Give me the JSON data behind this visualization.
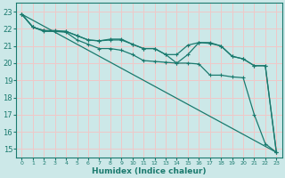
{
  "title": "",
  "xlabel": "Humidex (Indice chaleur)",
  "ylabel": "",
  "bg_color": "#cce8e8",
  "grid_color": "#f0c8c8",
  "line_color": "#1a7a6e",
  "xlim": [
    -0.5,
    23.5
  ],
  "ylim": [
    14.5,
    23.5
  ],
  "xticks": [
    0,
    1,
    2,
    3,
    4,
    5,
    6,
    7,
    8,
    9,
    10,
    11,
    12,
    13,
    14,
    15,
    16,
    17,
    18,
    19,
    20,
    21,
    22,
    23
  ],
  "yticks": [
    15,
    16,
    17,
    18,
    19,
    20,
    21,
    22,
    23
  ],
  "series_plain": [
    [
      0,
      22.85
    ],
    [
      23,
      14.8
    ]
  ],
  "series_with_markers": [
    [
      [
        0,
        1,
        2,
        3,
        4,
        5,
        6,
        7,
        8,
        9,
        10,
        11,
        12,
        13,
        14,
        15,
        16,
        17,
        18,
        19,
        20,
        21,
        22,
        23
      ],
      [
        22.85,
        22.1,
        21.9,
        21.85,
        21.85,
        21.6,
        21.35,
        21.3,
        21.35,
        21.35,
        21.1,
        20.85,
        20.85,
        20.5,
        20.5,
        21.05,
        21.2,
        21.2,
        21.0,
        20.4,
        20.25,
        19.85,
        19.85,
        14.8
      ]
    ],
    [
      [
        0,
        1,
        2,
        3,
        4,
        5,
        6,
        7,
        8,
        9,
        10,
        11,
        12,
        13,
        14,
        15,
        16,
        17,
        18,
        19,
        20,
        21,
        22,
        23
      ],
      [
        22.85,
        22.1,
        21.9,
        21.9,
        21.85,
        21.6,
        21.35,
        21.3,
        21.4,
        21.4,
        21.1,
        20.85,
        20.85,
        20.5,
        20.0,
        20.5,
        21.2,
        21.15,
        21.0,
        20.4,
        20.25,
        19.85,
        19.85,
        14.8
      ]
    ],
    [
      [
        0,
        1,
        2,
        3,
        4,
        5,
        6,
        7,
        8,
        9,
        10,
        11,
        12,
        13,
        14,
        15,
        16,
        17,
        18,
        19,
        20,
        21,
        22,
        23
      ],
      [
        22.85,
        22.1,
        21.85,
        21.85,
        21.8,
        21.35,
        21.1,
        20.85,
        20.85,
        20.75,
        20.5,
        20.15,
        20.1,
        20.05,
        20.0,
        20.0,
        19.95,
        19.3,
        19.3,
        19.2,
        19.15,
        17.0,
        15.3,
        14.8
      ]
    ]
  ]
}
